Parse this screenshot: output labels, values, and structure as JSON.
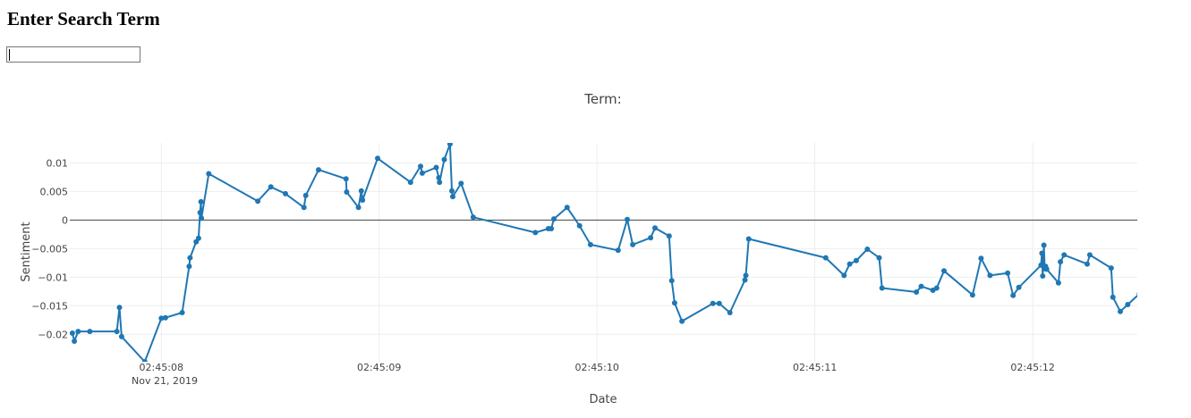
{
  "page": {
    "heading": "Enter Search Term",
    "search_value": ""
  },
  "chart_data": {
    "type": "line",
    "title": "Term:",
    "xlabel": "Date",
    "ylabel": "Sentiment",
    "date": "Nov 21, 2019",
    "x_tick_labels": [
      "02:45:08",
      "02:45:09",
      "02:45:10",
      "02:45:11",
      "02:45:12"
    ],
    "y_ticks": [
      0.01,
      0.005,
      0,
      -0.005,
      -0.01,
      -0.015,
      -0.02
    ],
    "y_tick_labels": [
      "0.01",
      "0.005",
      "0",
      "−0.005",
      "−0.01",
      "−0.015",
      "−0.02"
    ],
    "xlim": [
      "2019-11-21 02:45:07.580",
      "2019-11-21 02:45:12.480"
    ],
    "ylim": [
      -0.0248,
      0.0135
    ],
    "grid": true,
    "marker": true,
    "color": "#1f77b4",
    "zero_line_color": "#444444",
    "x": [
      "2019-11-21 02:45:07.592",
      "2019-11-21 02:45:07.601",
      "2019-11-21 02:45:07.618",
      "2019-11-21 02:45:07.672",
      "2019-11-21 02:45:07.796",
      "2019-11-21 02:45:07.808",
      "2019-11-21 02:45:07.818",
      "2019-11-21 02:45:07.924",
      "2019-11-21 02:45:08.000",
      "2019-11-21 02:45:08.019",
      "2019-11-21 02:45:08.096",
      "2019-11-21 02:45:08.128",
      "2019-11-21 02:45:08.132",
      "2019-11-21 02:45:08.160",
      "2019-11-21 02:45:08.171",
      "2019-11-21 02:45:08.178",
      "2019-11-21 02:45:08.182",
      "2019-11-21 02:45:08.184",
      "2019-11-21 02:45:08.218",
      "2019-11-21 02:45:08.443",
      "2019-11-21 02:45:08.503",
      "2019-11-21 02:45:08.570",
      "2019-11-21 02:45:08.655",
      "2019-11-21 02:45:08.663",
      "2019-11-21 02:45:08.722",
      "2019-11-21 02:45:08.848",
      "2019-11-21 02:45:08.851",
      "2019-11-21 02:45:08.905",
      "2019-11-21 02:45:08.918",
      "2019-11-21 02:45:08.924",
      "2019-11-21 02:45:08.993",
      "2019-11-21 02:45:09.144",
      "2019-11-21 02:45:09.190",
      "2019-11-21 02:45:09.198",
      "2019-11-21 02:45:09.262",
      "2019-11-21 02:45:09.274",
      "2019-11-21 02:45:09.277",
      "2019-11-21 02:45:09.299",
      "2019-11-21 02:45:09.325",
      "2019-11-21 02:45:09.334",
      "2019-11-21 02:45:09.338",
      "2019-11-21 02:45:09.376",
      "2019-11-21 02:45:09.432",
      "2019-11-21 02:45:09.717",
      "2019-11-21 02:45:09.777",
      "2019-11-21 02:45:09.790",
      "2019-11-21 02:45:09.802",
      "2019-11-21 02:45:09.863",
      "2019-11-21 02:45:09.920",
      "2019-11-21 02:45:09.970",
      "2019-11-21 02:45:10.097",
      "2019-11-21 02:45:10.139",
      "2019-11-21 02:45:10.164",
      "2019-11-21 02:45:10.246",
      "2019-11-21 02:45:10.266",
      "2019-11-21 02:45:10.331",
      "2019-11-21 02:45:10.343",
      "2019-11-21 02:45:10.356",
      "2019-11-21 02:45:10.390",
      "2019-11-21 02:45:10.532",
      "2019-11-21 02:45:10.561",
      "2019-11-21 02:45:10.610",
      "2019-11-21 02:45:10.679",
      "2019-11-21 02:45:10.683",
      "2019-11-21 02:45:10.696",
      "2019-11-21 02:45:11.050",
      "2019-11-21 02:45:11.134",
      "2019-11-21 02:45:11.160",
      "2019-11-21 02:45:11.190",
      "2019-11-21 02:45:11.241",
      "2019-11-21 02:45:11.295",
      "2019-11-21 02:45:11.308",
      "2019-11-21 02:45:11.466",
      "2019-11-21 02:45:11.488",
      "2019-11-21 02:45:11.542",
      "2019-11-21 02:45:11.559",
      "2019-11-21 02:45:11.593",
      "2019-11-21 02:45:11.724",
      "2019-11-21 02:45:11.763",
      "2019-11-21 02:45:11.804",
      "2019-11-21 02:45:11.885",
      "2019-11-21 02:45:11.910",
      "2019-11-21 02:45:11.936",
      "2019-11-21 02:45:12.038",
      "2019-11-21 02:45:12.042",
      "2019-11-21 02:45:12.046",
      "2019-11-21 02:45:12.051",
      "2019-11-21 02:45:12.055",
      "2019-11-21 02:45:12.059",
      "2019-11-21 02:45:12.064",
      "2019-11-21 02:45:12.118",
      "2019-11-21 02:45:12.127",
      "2019-11-21 02:45:12.144",
      "2019-11-21 02:45:12.250",
      "2019-11-21 02:45:12.262",
      "2019-11-21 02:45:12.360",
      "2019-11-21 02:45:12.368",
      "2019-11-21 02:45:12.402",
      "2019-11-21 02:45:12.436",
      "2019-11-21 02:45:12.490"
    ],
    "y": [
      -0.0198,
      -0.0212,
      -0.0195,
      -0.0195,
      -0.0195,
      -0.0153,
      -0.0204,
      -0.0248,
      -0.0172,
      -0.0171,
      -0.0162,
      -0.0081,
      -0.0066,
      -0.0038,
      -0.0032,
      0.0013,
      0.0032,
      0.0003,
      0.0081,
      0.0033,
      0.0058,
      0.0046,
      0.0022,
      0.0043,
      0.0088,
      0.0072,
      0.0049,
      0.0022,
      0.0051,
      0.0035,
      0.0108,
      0.0066,
      0.0094,
      0.0082,
      0.0092,
      0.0074,
      0.0066,
      0.0106,
      0.0133,
      0.0051,
      0.0041,
      0.0064,
      0.0005,
      -0.0022,
      -0.0015,
      -0.0015,
      0.0002,
      0.0022,
      -0.001,
      -0.0043,
      -0.0053,
      0.0001,
      -0.0043,
      -0.0031,
      -0.0014,
      -0.0028,
      -0.0106,
      -0.0145,
      -0.0177,
      -0.0146,
      -0.0146,
      -0.0162,
      -0.0105,
      -0.0097,
      -0.0033,
      -0.0066,
      -0.0097,
      -0.0077,
      -0.0071,
      -0.0051,
      -0.0066,
      -0.0119,
      -0.0126,
      -0.0116,
      -0.0123,
      -0.0119,
      -0.0089,
      -0.0131,
      -0.0067,
      -0.0097,
      -0.0093,
      -0.0132,
      -0.0118,
      -0.0079,
      -0.0058,
      -0.0098,
      -0.0044,
      -0.0085,
      -0.0081,
      -0.0086,
      -0.011,
      -0.0073,
      -0.0061,
      -0.0077,
      -0.0061,
      -0.0084,
      -0.0135,
      -0.016,
      -0.0148,
      -0.0129
    ]
  }
}
